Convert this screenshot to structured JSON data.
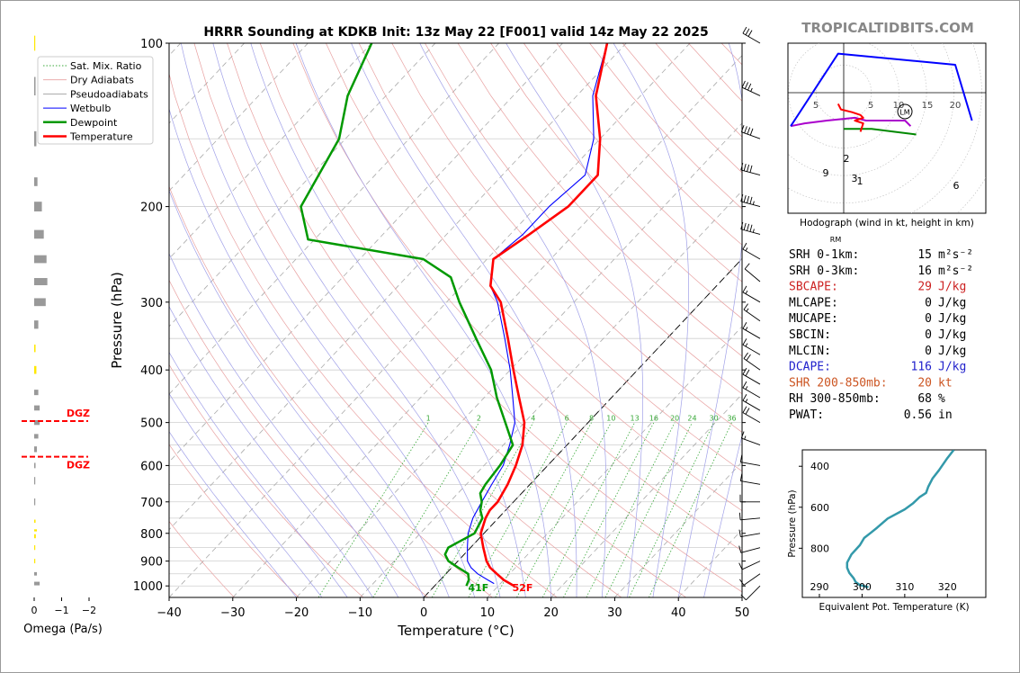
{
  "header": {
    "title": "HRRR Sounding at KDKB Init: 13z May 22 [F001] valid 14z May 22 2025",
    "brand": "TROPICALTIDBITS.COM"
  },
  "chart_data": [
    {
      "type": "line",
      "name": "skew-t",
      "xlabel": "Temperature (°C)",
      "ylabel": "Pressure (hPa)",
      "xlim": [
        -40,
        50
      ],
      "ylim": [
        1050,
        100
      ],
      "y_scale": "log",
      "x_ticks": [
        "−40",
        "−30",
        "−20",
        "−10",
        "0",
        "10",
        "20",
        "30",
        "40",
        "50"
      ],
      "y_ticks": [
        "100",
        "200",
        "300",
        "400",
        "500",
        "600",
        "700",
        "800",
        "900",
        "1000"
      ],
      "legend": {
        "placement": "upper-left",
        "entries": [
          "Sat. Mix. Ratio",
          "Dry Adiabats",
          "Pseudoadiabats",
          "Wetbulb",
          "Dewpoint",
          "Temperature"
        ]
      },
      "colors": {
        "temperature": "#ff0000",
        "dewpoint": "#009900",
        "wetbulb": "#0000ff",
        "dry_adiabats": "#e8a0a0",
        "pseudoadiabats": "#a0a0e8",
        "mixing_ratio": "#38a838"
      },
      "mixing_ratio_labels": [
        "1",
        "2",
        "4",
        "6",
        "8",
        "10",
        "13",
        "16",
        "20",
        "24",
        "30",
        "36"
      ],
      "surface_labels": {
        "temperature": "52F",
        "dewpoint": "41F"
      },
      "series": [
        {
          "name": "Temperature",
          "p": [
            1000,
            975,
            950,
            925,
            900,
            850,
            800,
            750,
            725,
            700,
            650,
            600,
            550,
            500,
            450,
            400,
            350,
            300,
            280,
            250,
            225,
            200,
            175,
            150,
            125,
            100
          ],
          "t": [
            12.5,
            10,
            8,
            6,
            4.5,
            2,
            -0.5,
            -2,
            -2.5,
            -2.5,
            -3.5,
            -5,
            -7,
            -10,
            -14.5,
            -19.5,
            -25,
            -31.5,
            -35.5,
            -39,
            -37,
            -35,
            -35,
            -40,
            -47,
            -53
          ]
        },
        {
          "name": "Dewpoint",
          "p": [
            1000,
            975,
            950,
            925,
            900,
            875,
            850,
            800,
            750,
            725,
            700,
            675,
            650,
            600,
            550,
            500,
            450,
            400,
            350,
            300,
            270,
            250,
            230,
            200,
            150,
            125,
            100
          ],
          "t": [
            5,
            4.5,
            3.5,
            1,
            -1.5,
            -3,
            -3.5,
            -1.5,
            -2.5,
            -4,
            -5,
            -6.5,
            -7,
            -7.5,
            -8.5,
            -13,
            -18,
            -23,
            -30,
            -38,
            -43,
            -50,
            -71,
            -77,
            -81,
            -86,
            -90
          ]
        },
        {
          "name": "Wetbulb",
          "p": [
            990,
            975,
            950,
            925,
            900,
            850,
            800,
            750,
            700,
            650,
            600,
            550,
            500,
            450,
            400,
            350,
            300,
            280,
            250,
            225,
            200,
            175,
            150,
            125,
            100
          ],
          "t": [
            9,
            7.5,
            5,
            3,
            1.5,
            -0.5,
            -2.5,
            -4,
            -5,
            -6,
            -7,
            -9,
            -11.5,
            -15.5,
            -20,
            -25.5,
            -32,
            -35.5,
            -39,
            -38,
            -38,
            -37,
            -41,
            -47.5,
            -53
          ]
        }
      ]
    },
    {
      "type": "bar",
      "name": "omega",
      "xlabel": "Omega (Pa/s)",
      "x_ticks": [
        "0",
        "−1",
        "−2"
      ],
      "xlim": [
        0.1,
        -2.5
      ],
      "dgz_label": "DGZ",
      "dgz_bounds_hpa": [
        497,
        578
      ],
      "p": [
        100,
        120,
        150,
        180,
        200,
        225,
        250,
        275,
        300,
        330,
        365,
        400,
        440,
        470,
        500,
        530,
        560,
        600,
        640,
        700,
        760,
        790,
        810,
        850,
        900,
        950,
        990
      ],
      "values": [
        -0.02,
        -0.05,
        -0.08,
        -0.12,
        -0.28,
        -0.35,
        -0.45,
        -0.48,
        -0.42,
        -0.15,
        -0.05,
        -0.08,
        -0.15,
        -0.2,
        -0.2,
        -0.15,
        -0.1,
        -0.05,
        -0.02,
        0.0,
        -0.05,
        -0.1,
        -0.06,
        -0.03,
        -0.02,
        -0.1,
        -0.2
      ],
      "colors": [
        "#ffe800",
        "#999999",
        "#999999",
        "#999999",
        "#999999",
        "#999999",
        "#999999",
        "#999999",
        "#999999",
        "#999999",
        "#ffe800",
        "#ffe800",
        "#999999",
        "#999999",
        "#999999",
        "#999999",
        "#999999",
        "#999999",
        "#999999",
        "#999999",
        "#ffe800",
        "#ffe800",
        "#ffe800",
        "#ffe800",
        "#ffe800",
        "#999999",
        "#999999"
      ]
    },
    {
      "type": "scatter",
      "name": "hodograph",
      "xlabel": "Hodograph (wind in kt, height in km)",
      "ring_labels": [
        "5",
        "5",
        "10",
        "15",
        "20"
      ],
      "storm_motion_labels": {
        "left_mover": "LM",
        "right_mover": "RM"
      },
      "segments": [
        {
          "color": "#008800",
          "u": [
            0,
            6,
            10,
            18,
            26
          ],
          "v": [
            -13,
            -13,
            -13,
            -14,
            -15
          ],
          "labels": []
        },
        {
          "color": "#aa00cc",
          "u": [
            -19,
            -14,
            -6,
            4,
            8,
            16,
            22,
            24
          ],
          "v": [
            -12,
            -11,
            -10,
            -9,
            -10,
            -10,
            -10,
            -12
          ],
          "labels": [
            "9",
            "6"
          ]
        },
        {
          "color": "#0000ff",
          "u": [
            -19,
            -2,
            40,
            46
          ],
          "v": [
            -12,
            14,
            10,
            -10
          ],
          "labels": []
        },
        {
          "color": "#ff0000",
          "u": [
            -2,
            -1,
            3,
            6,
            7,
            4,
            7,
            6
          ],
          "v": [
            -4,
            -6,
            -7,
            -8,
            -9,
            -10,
            -11,
            -14
          ],
          "labels": [
            "2",
            "3",
            "1"
          ]
        }
      ]
    },
    {
      "type": "line",
      "name": "theta-e",
      "xlabel": "Equivalent Pot. Temperature (K)",
      "ylabel": "Pressure (hPa)",
      "x_ticks": [
        "290",
        "300",
        "310",
        "320"
      ],
      "y_ticks": [
        "400",
        "600",
        "800"
      ],
      "xlim": [
        286,
        329
      ],
      "ylim": [
        1040,
        320
      ],
      "color": "#3399aa",
      "x": [
        301.5,
        299.5,
        298.5,
        298,
        297,
        296.5,
        296.5,
        297.5,
        299.5,
        300.5,
        302,
        303.5,
        306,
        310,
        312,
        313.5,
        315,
        315.5,
        316.5,
        318,
        320,
        321.5
      ],
      "p": [
        990,
        980,
        965,
        945,
        920,
        895,
        870,
        830,
        785,
        750,
        725,
        700,
        655,
        610,
        580,
        550,
        530,
        500,
        460,
        420,
        360,
        320
      ]
    }
  ],
  "indices": [
    {
      "label": "SRH 0-1km:",
      "value": "15",
      "unit": "m²s⁻²",
      "color": "#000000"
    },
    {
      "label": "SRH 0-3km:",
      "value": "16",
      "unit": "m²s⁻²",
      "color": "#000000"
    },
    {
      "label": "SBCAPE:",
      "value": "29",
      "unit": "J/kg",
      "color": "#cc2222"
    },
    {
      "label": "MLCAPE:",
      "value": "0",
      "unit": "J/kg",
      "color": "#000000"
    },
    {
      "label": "MUCAPE:",
      "value": "0",
      "unit": "J/kg",
      "color": "#000000"
    },
    {
      "label": "SBCIN:",
      "value": "0",
      "unit": "J/kg",
      "color": "#000000"
    },
    {
      "label": "MLCIN:",
      "value": "0",
      "unit": "J/kg",
      "color": "#000000"
    },
    {
      "label": "DCAPE:",
      "value": "116",
      "unit": "J/kg",
      "color": "#2222cc"
    },
    {
      "label": "SHR 200-850mb:",
      "value": "20",
      "unit": "kt",
      "color": "#cc5522"
    },
    {
      "label": "RH 300-850mb:",
      "value": "68",
      "unit": "%",
      "color": "#000000"
    },
    {
      "label": "PWAT:",
      "value": "0.56",
      "unit": "in",
      "color": "#000000"
    }
  ],
  "wind_barbs": {
    "p": [
      100,
      125,
      150,
      175,
      200,
      225,
      250,
      275,
      300,
      325,
      350,
      375,
      400,
      425,
      450,
      475,
      500,
      550,
      600,
      650,
      700,
      750,
      800,
      850,
      900,
      950,
      1000
    ],
    "speed_kt": [
      30,
      35,
      40,
      40,
      45,
      45,
      15,
      10,
      15,
      15,
      15,
      15,
      20,
      20,
      15,
      15,
      20,
      15,
      10,
      10,
      10,
      10,
      10,
      10,
      10,
      10,
      10
    ],
    "dir_deg": [
      300,
      295,
      290,
      285,
      285,
      285,
      300,
      310,
      300,
      305,
      300,
      300,
      305,
      300,
      300,
      300,
      300,
      290,
      280,
      280,
      270,
      265,
      260,
      255,
      245,
      235,
      225
    ]
  }
}
